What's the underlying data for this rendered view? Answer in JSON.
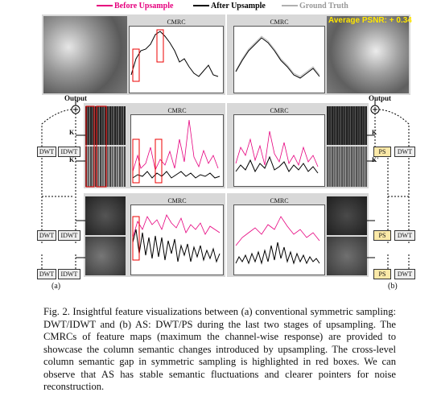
{
  "legend": {
    "before": "Before Upsample",
    "after": "After Upsample",
    "gt": "Ground Truth",
    "colors": {
      "before": "#e6007e",
      "after": "#000000",
      "gt": "#b0b0b0"
    }
  },
  "plot_title": "CMRC",
  "psnr_label": "Average PSNR: + 0.34",
  "output_label": "Output",
  "boxes": {
    "dwt": "DWT",
    "idwt": "IDWT",
    "ps": "PS"
  },
  "k_labels": {
    "k": "K",
    "kp": "K'"
  },
  "sub_a": "(a)",
  "sub_b": "(b)",
  "caption": "Fig. 2.   Insightful feature visualizations between (a) conventional symmetric sampling: DWT/IDWT and (b) AS: DWT/PS during the last two stages of upsampling. The CMRCs of feature maps (maximum the channel-wise response) are provided to showcase the column semantic changes introduced by upsampling. The cross-level column semantic gap in symmetric sampling is highlighted in red boxes. We can observe that AS has stable semantic fluctuations and clearer pointers for noise reconstruction."
}
